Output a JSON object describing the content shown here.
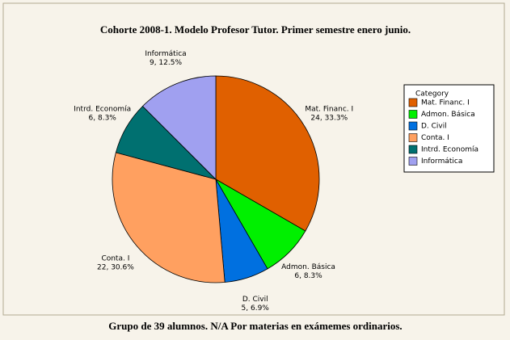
{
  "chart_data": {
    "type": "pie",
    "title": "Cohorte 2008-1. Modelo Profesor Tutor. Primer semestre enero junio.",
    "footnote": "Grupo de 39 alumnos. N/A Por materias en exámemes ordinarios.",
    "legend_title": "Category",
    "legend": "right",
    "categories": [
      "Mat. Financ. I",
      "Admon. Básica",
      "D. Civil",
      "Conta. I",
      "Intrd. Economía",
      "Informática"
    ],
    "values": [
      24,
      6,
      5,
      22,
      6,
      9
    ],
    "value_labels": [
      "24, 33.3%",
      "6, 8.3%",
      "5, 6.9%",
      "22, 30.6%",
      "6, 8.3%",
      "9, 12.5%"
    ],
    "colors": [
      "#e06000",
      "#00f000",
      "#0070e0",
      "#ffa060",
      "#007070",
      "#a0a0f0"
    ]
  }
}
